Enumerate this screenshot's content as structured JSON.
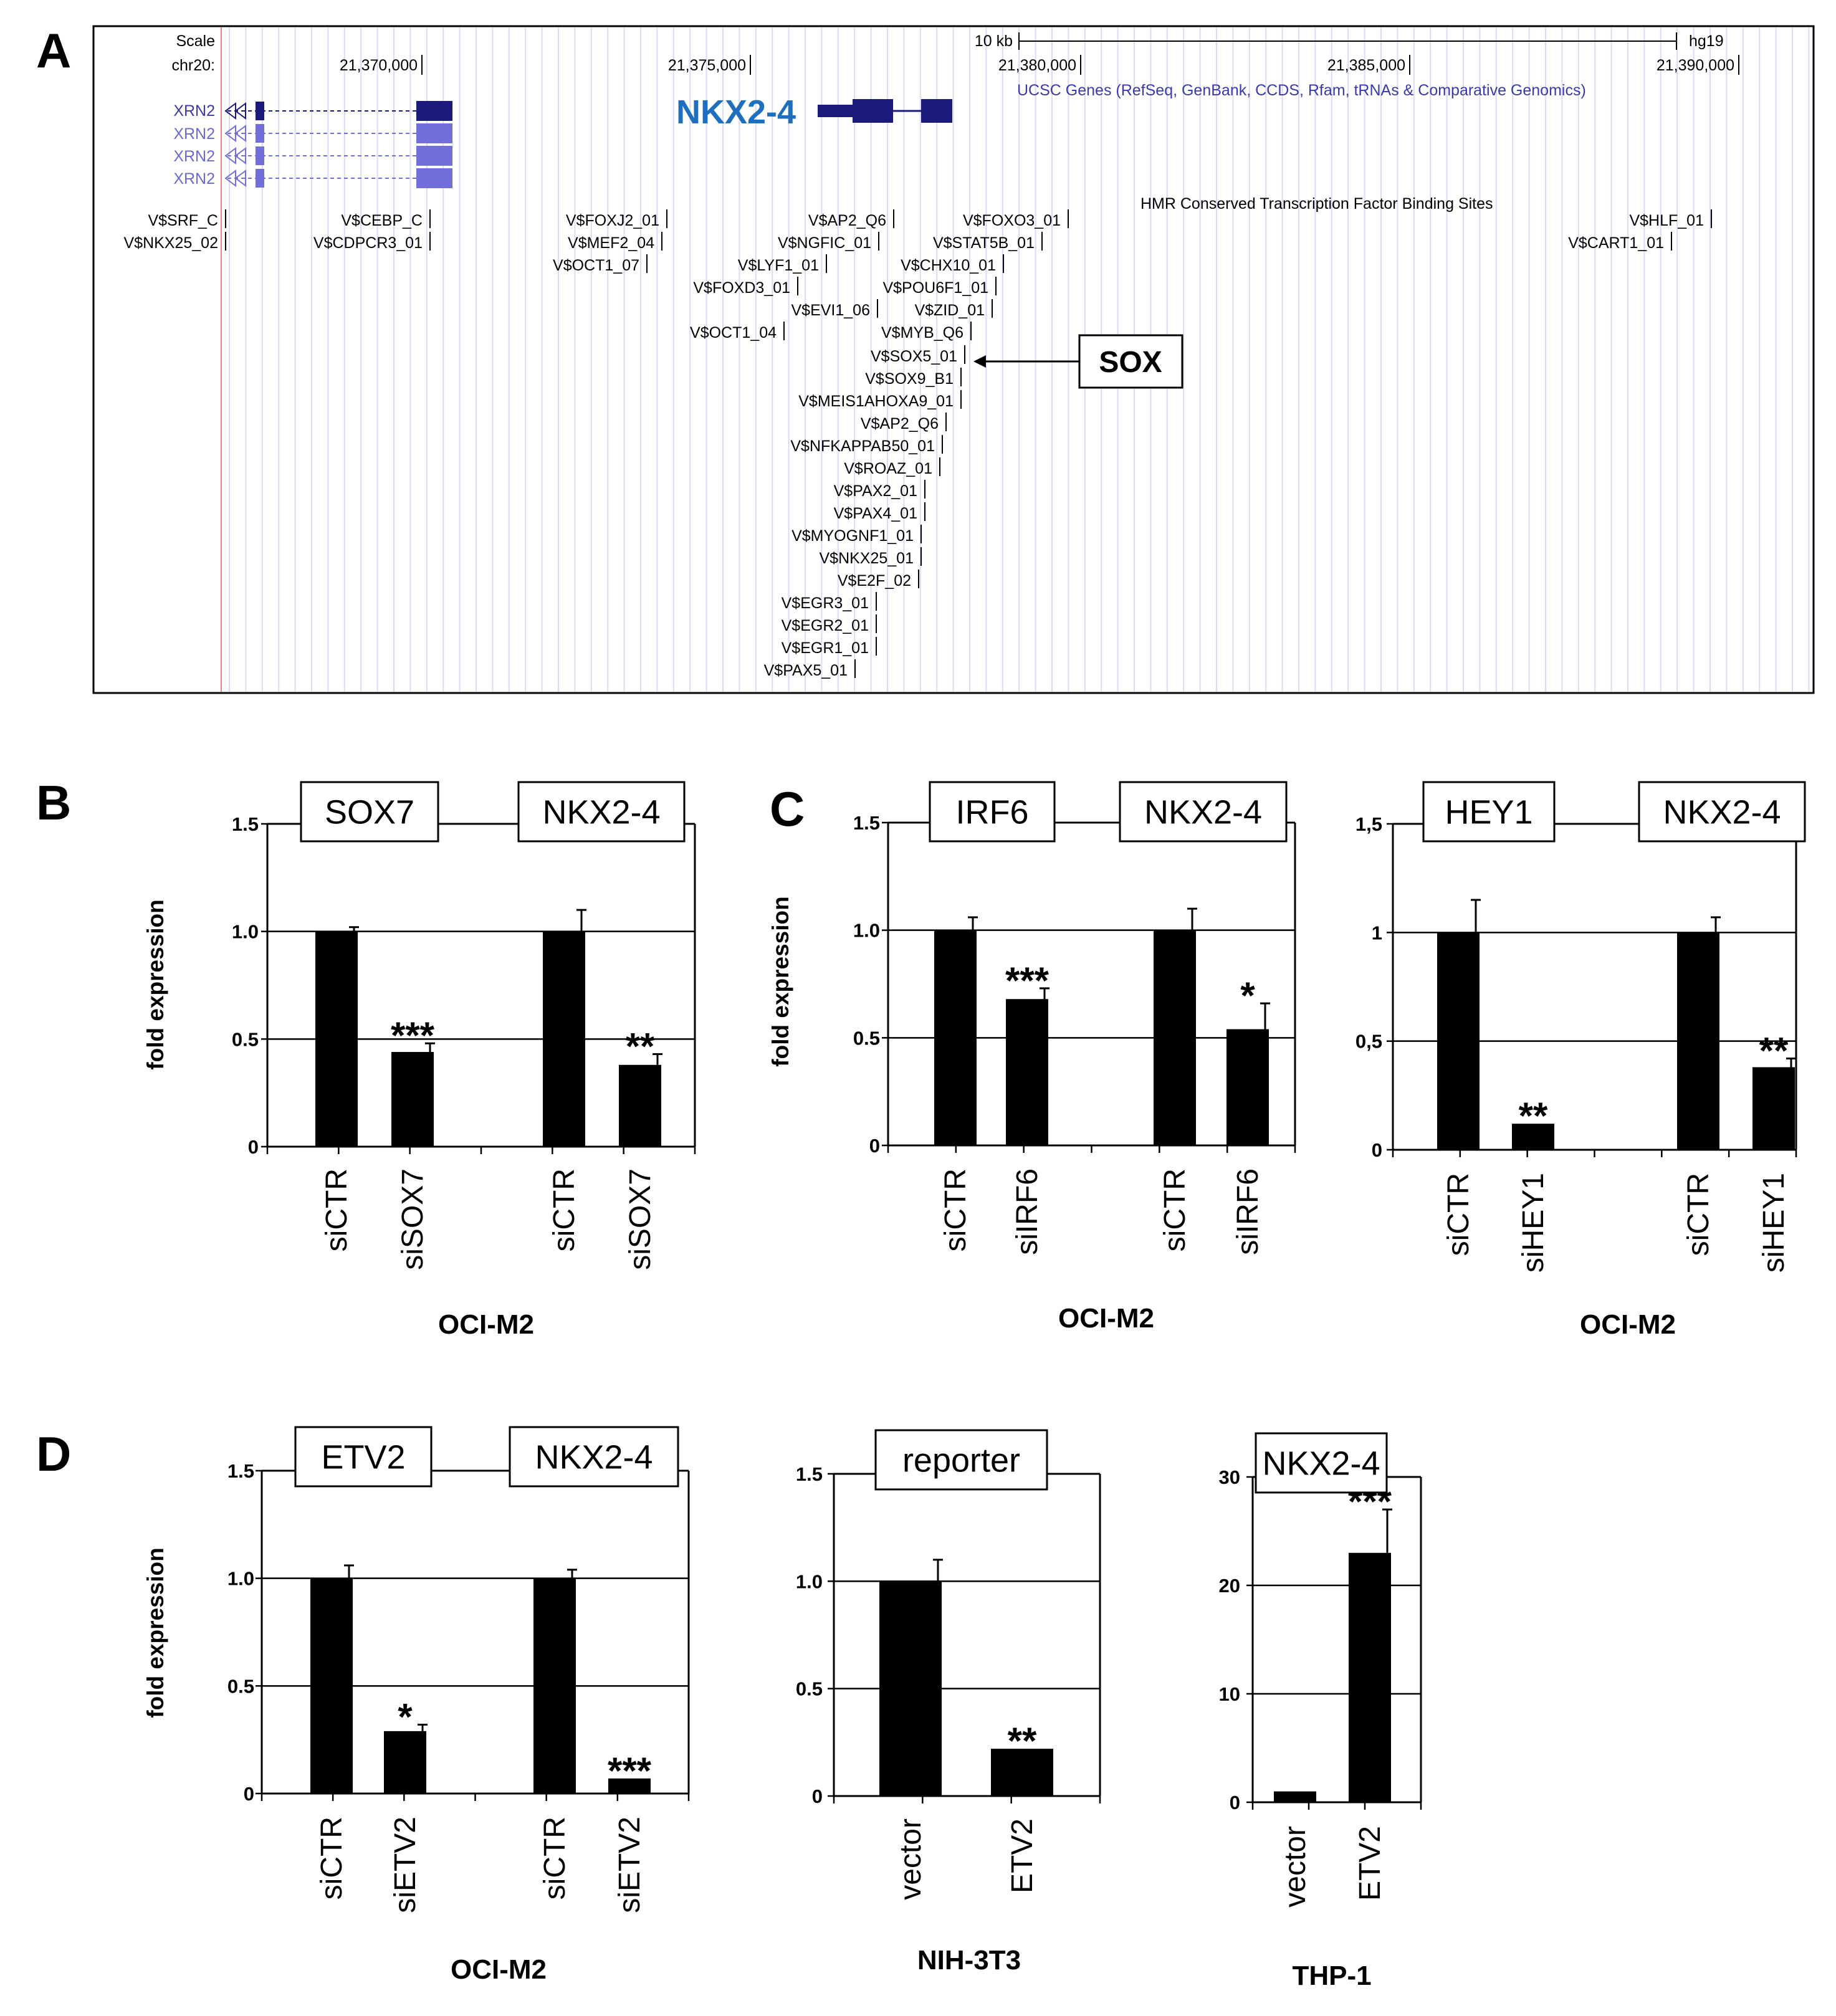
{
  "panel_labels": {
    "a": "A",
    "b": "B",
    "c": "C",
    "d": "D"
  },
  "browser": {
    "scale_label": "Scale",
    "chrom_label": "chr20:",
    "scale_bar_label": "10 kb",
    "assembly": "hg19",
    "positions": [
      "21,370,000",
      "21,375,000",
      "21,380,000",
      "21,385,000",
      "21,390,000"
    ],
    "gene_title": "NKX2-4",
    "ucsc_track_label": "UCSC Genes (RefSeq, GenBank, CCDS, Rfam, tRNAs & Comparative Genomics)",
    "xrn2_labels": [
      "XRN2",
      "XRN2",
      "XRN2",
      "XRN2"
    ],
    "tfbs_track_label": "HMR Conserved Transcription Factor Binding Sites",
    "sox_box_label": "SOX",
    "tfbs": [
      "V$SRF_C",
      "V$NKX25_02",
      "V$CEBP_C",
      "V$CDPCR3_01",
      "V$FOXJ2_01",
      "V$MEF2_04",
      "V$OCT1_07",
      "V$AP2_Q6",
      "V$FOXO3_01",
      "V$NGFIC_01",
      "V$STAT5B_01",
      "V$LYF1_01",
      "V$CHX10_01",
      "V$FOXD3_01",
      "V$POU6F1_01",
      "V$EVI1_06",
      "V$ZID_01",
      "V$OCT1_04",
      "V$MYB_Q6",
      "V$SOX5_01",
      "V$SOX9_B1",
      "V$MEIS1AHOXA9_01",
      "V$AP2_Q6",
      "V$NFKAPPAB50_01",
      "V$ROAZ_01",
      "V$PAX2_01",
      "V$PAX4_01",
      "V$MYOGNF1_01",
      "V$NKX25_01",
      "V$E2F_02",
      "V$EGR3_01",
      "V$EGR2_01",
      "V$EGR1_01",
      "V$PAX5_01",
      "V$HLF_01",
      "V$CART1_01"
    ]
  },
  "chart_data": [
    {
      "id": "B",
      "type": "bar",
      "ylabel": "fold expression",
      "yticks": [
        "0",
        "0.5",
        "1.0",
        "1.5"
      ],
      "ylim": [
        0,
        1.5
      ],
      "categories": [
        "siCTR",
        "siSOX7",
        "siCTR",
        "siSOX7"
      ],
      "values": [
        1.0,
        0.44,
        1.0,
        0.38
      ],
      "errors": [
        0.02,
        0.04,
        0.1,
        0.05
      ],
      "significance": [
        "",
        "***",
        "",
        "**"
      ],
      "gene_boxes": [
        "SOX7",
        "NKX2-4"
      ],
      "cell_line": "OCI-M2"
    },
    {
      "id": "C1",
      "type": "bar",
      "ylabel": "fold expression",
      "yticks": [
        "0",
        "0.5",
        "1.0",
        "1.5"
      ],
      "ylim": [
        0,
        1.5
      ],
      "categories": [
        "siCTR",
        "siIRF6",
        "siCTR",
        "siIRF6"
      ],
      "values": [
        1.0,
        0.68,
        1.0,
        0.54
      ],
      "errors": [
        0.06,
        0.05,
        0.1,
        0.12
      ],
      "significance": [
        "",
        "***",
        "",
        "*"
      ],
      "gene_boxes": [
        "IRF6",
        "NKX2-4"
      ],
      "cell_line": "OCI-M2"
    },
    {
      "id": "C2",
      "type": "bar",
      "ylabel": "",
      "yticks": [
        "0",
        "0,5",
        "1",
        "1,5"
      ],
      "ylim": [
        0,
        1.5
      ],
      "categories": [
        "siCTR",
        "siHEY1",
        "siCTR",
        "siHEY1"
      ],
      "values": [
        1.0,
        0.12,
        1.0,
        0.38
      ],
      "errors": [
        0.15,
        0.0,
        0.07,
        0.04
      ],
      "significance": [
        "",
        "**",
        "",
        "**"
      ],
      "gene_boxes": [
        "HEY1",
        "NKX2-4"
      ],
      "cell_line": "OCI-M2"
    },
    {
      "id": "D1",
      "type": "bar",
      "ylabel": "fold expression",
      "yticks": [
        "0",
        "0.5",
        "1.0",
        "1.5"
      ],
      "ylim": [
        0,
        1.5
      ],
      "categories": [
        "siCTR",
        "siETV2",
        "siCTR",
        "siETV2"
      ],
      "values": [
        1.0,
        0.29,
        1.0,
        0.07
      ],
      "errors": [
        0.06,
        0.03,
        0.04,
        0.0
      ],
      "significance": [
        "",
        "*",
        "",
        "***"
      ],
      "gene_boxes": [
        "ETV2",
        "NKX2-4"
      ],
      "cell_line": "OCI-M2"
    },
    {
      "id": "D2",
      "type": "bar",
      "ylabel": "",
      "yticks": [
        "0",
        "0.5",
        "1.0",
        "1.5"
      ],
      "ylim": [
        0,
        1.5
      ],
      "categories": [
        "vector",
        "ETV2"
      ],
      "values": [
        1.0,
        0.22
      ],
      "errors": [
        0.1,
        0.0
      ],
      "significance": [
        "",
        "**"
      ],
      "gene_boxes": [
        "reporter"
      ],
      "cell_line": "NIH-3T3"
    },
    {
      "id": "D3",
      "type": "bar",
      "ylabel": "",
      "yticks": [
        "0",
        "10",
        "20",
        "30"
      ],
      "ylim": [
        0,
        30
      ],
      "categories": [
        "vector",
        "ETV2"
      ],
      "values": [
        1.0,
        23.0
      ],
      "errors": [
        0.0,
        4.0
      ],
      "significance": [
        "",
        "***"
      ],
      "gene_boxes": [
        "NKX2-4"
      ],
      "cell_line": "THP-1"
    }
  ]
}
